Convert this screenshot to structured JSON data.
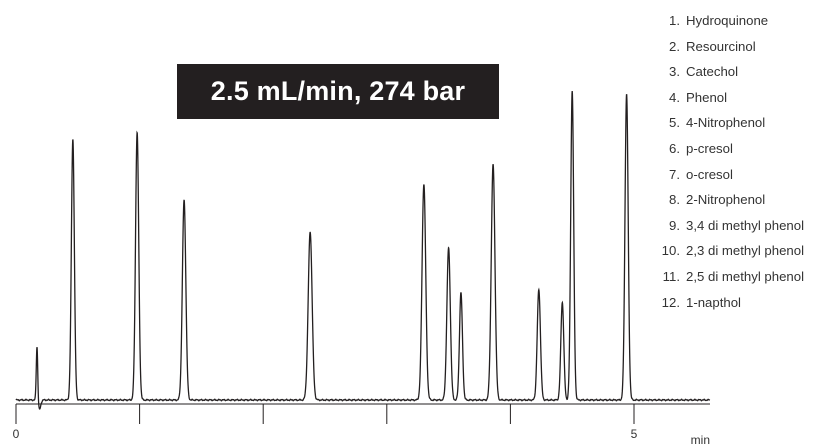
{
  "chart_data": {
    "type": "line",
    "title": "2.5 mL/min, 274 bar",
    "xlabel": "min",
    "xlim": [
      0,
      5.7
    ],
    "ylim": [
      0,
      1
    ],
    "x_ticks": [
      0,
      1,
      2,
      3,
      4,
      5
    ],
    "x_tick_labels": [
      "0",
      "",
      "",
      "",
      "",
      "5"
    ],
    "grid": false,
    "legend_placement": "top-right",
    "legend": [
      {
        "num": "1.",
        "name": "Hydroquinone"
      },
      {
        "num": "2.",
        "name": "Resourcinol"
      },
      {
        "num": "3.",
        "name": "Catechol"
      },
      {
        "num": "4.",
        "name": "Phenol"
      },
      {
        "num": "5.",
        "name": "4-Nitrophenol"
      },
      {
        "num": "6.",
        "name": "p-cresol"
      },
      {
        "num": "7.",
        "name": "o-cresol"
      },
      {
        "num": "8.",
        "name": "2-Nitrophenol"
      },
      {
        "num": "9.",
        "name": "3,4 di methyl phenol"
      },
      {
        "num": "10.",
        "name": "2,3 di methyl phenol"
      },
      {
        "num": "11.",
        "name": "2,5 di methyl phenol"
      },
      {
        "num": "12.",
        "name": "1-napthol"
      }
    ],
    "series": [
      {
        "color": "#231f20",
        "baseline": 0.035,
        "injection_time": 0.17,
        "peaks": [
          {
            "x": 0.46,
            "height": 0.85,
            "width": 0.012
          },
          {
            "x": 0.98,
            "height": 0.87,
            "width": 0.013
          },
          {
            "x": 1.36,
            "height": 0.66,
            "width": 0.014
          },
          {
            "x": 2.38,
            "height": 0.56,
            "width": 0.016
          },
          {
            "x": 3.3,
            "height": 0.71,
            "width": 0.015
          },
          {
            "x": 3.5,
            "height": 0.51,
            "width": 0.014
          },
          {
            "x": 3.6,
            "height": 0.37,
            "width": 0.012
          },
          {
            "x": 3.86,
            "height": 0.77,
            "width": 0.015
          },
          {
            "x": 4.23,
            "height": 0.38,
            "width": 0.013
          },
          {
            "x": 4.42,
            "height": 0.34,
            "width": 0.012
          },
          {
            "x": 4.5,
            "height": 1.0,
            "width": 0.012
          },
          {
            "x": 4.94,
            "height": 0.99,
            "width": 0.013
          }
        ]
      }
    ]
  }
}
